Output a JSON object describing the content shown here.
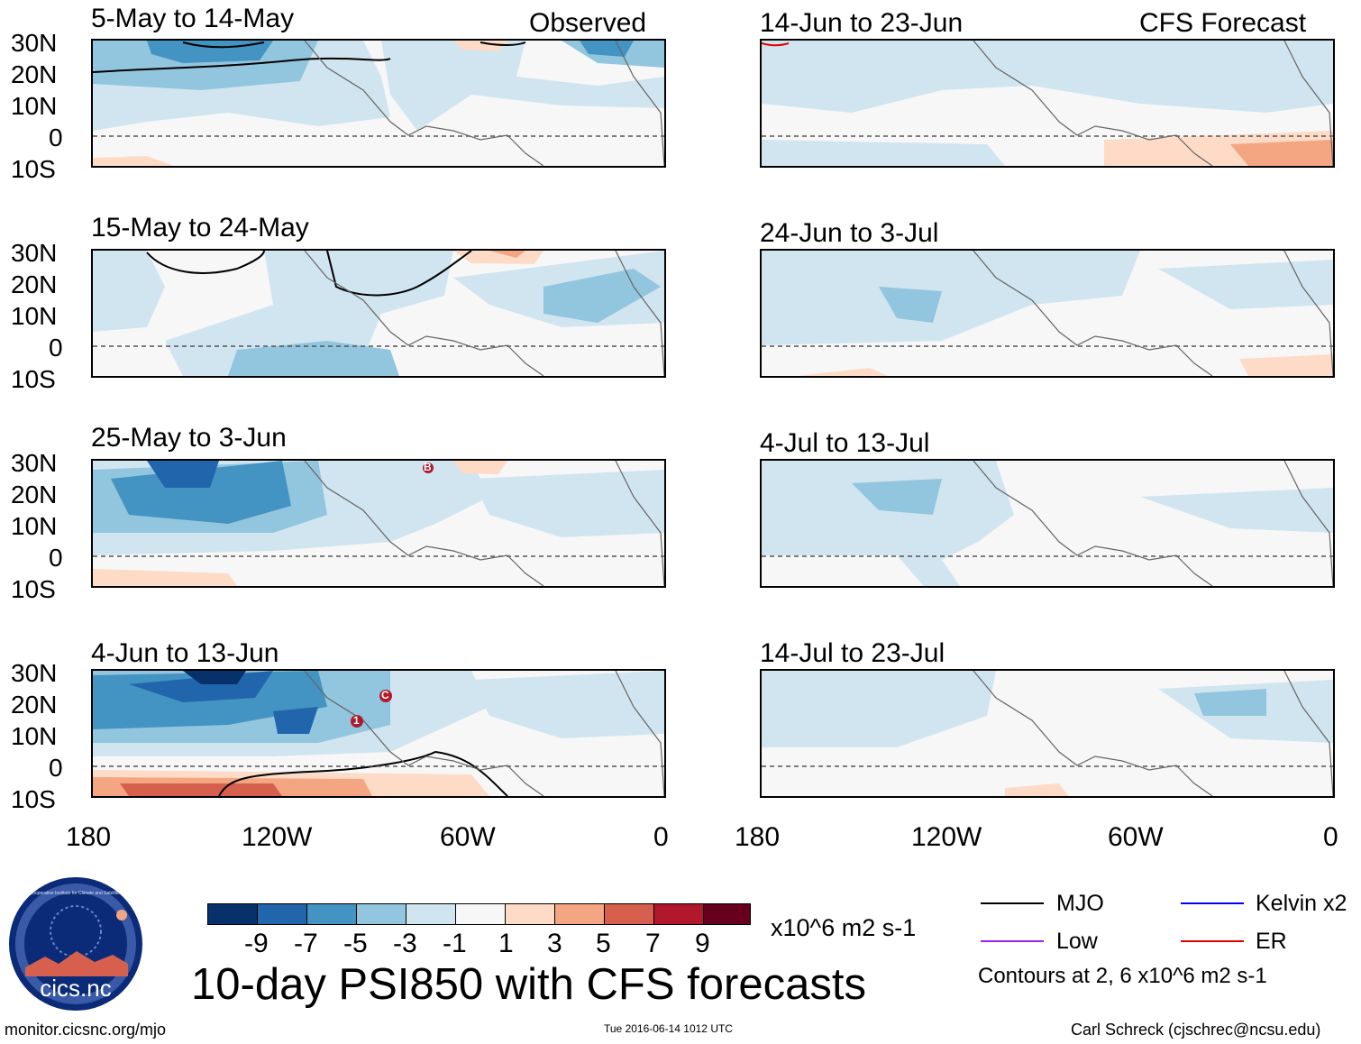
{
  "figure_title": "10-day PSI850 with CFS forecasts",
  "column_headers": {
    "left": "Observed",
    "right": "CFS Forecast"
  },
  "panels_left": [
    {
      "period": "5-May to 14-May"
    },
    {
      "period": "15-May to 24-May"
    },
    {
      "period": "25-May to 3-Jun"
    },
    {
      "period": "4-Jun to 13-Jun"
    }
  ],
  "panels_right": [
    {
      "period": "14-Jun to 23-Jun"
    },
    {
      "period": "24-Jun to 3-Jul"
    },
    {
      "period": "4-Jul to 13-Jul"
    },
    {
      "period": "14-Jul to 23-Jul"
    }
  ],
  "lat_labels": [
    "30N",
    "20N",
    "10N",
    "0",
    "10S"
  ],
  "lon_labels": [
    "180",
    "120W",
    "60W",
    "0"
  ],
  "colorbar": {
    "unit": "x10^6 m2 s-1",
    "ticks": [
      "-9",
      "-7",
      "-5",
      "-3",
      "-1",
      "1",
      "3",
      "5",
      "7",
      "9"
    ],
    "colors": [
      "#08306b",
      "#2166ac",
      "#4393c3",
      "#92c5de",
      "#d1e5f0",
      "#f7f7f7",
      "#fddbc7",
      "#f4a582",
      "#d6604d",
      "#b2182b",
      "#67001f"
    ]
  },
  "contour_legend": [
    {
      "label": "MJO",
      "color": "#000000"
    },
    {
      "label": "Kelvin x2",
      "color": "#0000ff"
    },
    {
      "label": "Low",
      "color": "#a020f0"
    },
    {
      "label": "ER",
      "color": "#e00000"
    }
  ],
  "contour_note": "Contours at 2, 6 x10^6 m2 s-1",
  "storm_markers": [
    "B",
    "1",
    "C"
  ],
  "logo_text": "cics.nc",
  "logo_ring_text": "Cooperative Institute for Climate and Satellites",
  "footer": {
    "left": "monitor.cicsnc.org/mjo",
    "center": "Tue 2016-06-14 1012 UTC",
    "right": "Carl Schreck (cjschrec@ncsu.edu)"
  },
  "chart_data": {
    "type": "heatmap",
    "title": "10-day PSI850 with CFS forecasts",
    "variable": "850-hPa streamfunction anomaly",
    "unit": "x10^6 m2 s-1",
    "color_levels": [
      -9,
      -7,
      -5,
      -3,
      -1,
      1,
      3,
      5,
      7,
      9
    ],
    "lat_range": [
      -10,
      30
    ],
    "lon_range": [
      -180,
      0
    ],
    "panels": [
      "5-May to 14-May",
      "15-May to 24-May",
      "25-May to 3-Jun",
      "4-Jun to 13-Jun",
      "14-Jun to 23-Jun",
      "24-Jun to 3-Jul",
      "4-Jul to 13-Jul",
      "14-Jul to 23-Jul"
    ]
  }
}
